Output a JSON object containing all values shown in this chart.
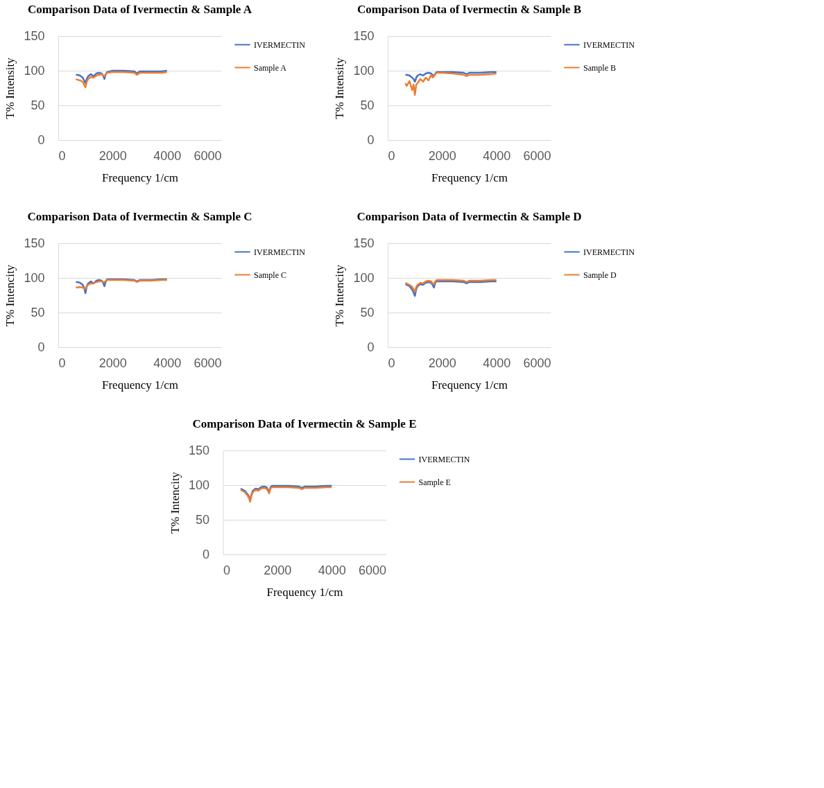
{
  "chart_data": [
    {
      "type": "line",
      "title": "Comparison Data of Ivermectin & Sample A",
      "xlabel": "Frequency 1/cm",
      "ylabel": "T% Intensity",
      "xlim": [
        0,
        6000
      ],
      "xticks": [
        0,
        2000,
        4000,
        6000
      ],
      "ylim": [
        0,
        150
      ],
      "yticks": [
        0,
        50,
        100,
        150
      ],
      "grid": "y",
      "legend": "right",
      "line_style": "solid",
      "x": [
        650,
        700,
        800,
        900,
        950,
        1000,
        1050,
        1100,
        1200,
        1300,
        1400,
        1500,
        1600,
        1650,
        1700,
        1750,
        1800,
        2000,
        2400,
        2800,
        2900,
        3000,
        3400,
        3800,
        4000
      ],
      "series": [
        {
          "name": "IVERMECTIN",
          "color": "#4472c4",
          "values": [
            94,
            94,
            93,
            90,
            86,
            82,
            88,
            92,
            95,
            92,
            96,
            97,
            96,
            93,
            88,
            95,
            98,
            100,
            100,
            99,
            96,
            99,
            99,
            99,
            100
          ]
        },
        {
          "name": "Sample A",
          "color": "#ed7d31",
          "values": [
            88,
            87,
            86,
            84,
            80,
            76,
            84,
            88,
            91,
            90,
            93,
            94,
            95,
            93,
            92,
            95,
            97,
            98,
            98,
            97,
            94,
            97,
            97,
            97,
            98
          ]
        }
      ]
    },
    {
      "type": "line",
      "title": "Comparison Data of Ivermectin & Sample B",
      "xlabel": "Frequency 1/cm",
      "ylabel": "T% Intensity",
      "xlim": [
        0,
        6000
      ],
      "xticks": [
        0,
        2000,
        4000,
        6000
      ],
      "ylim": [
        0,
        150
      ],
      "yticks": [
        0,
        50,
        100,
        150
      ],
      "grid": "y",
      "legend": "right",
      "line_style": "solid",
      "x": [
        650,
        700,
        800,
        900,
        950,
        1000,
        1050,
        1100,
        1200,
        1300,
        1400,
        1500,
        1600,
        1650,
        1700,
        1750,
        1800,
        2000,
        2400,
        2800,
        2900,
        3000,
        3400,
        3800,
        4000
      ],
      "series": [
        {
          "name": "IVERMECTIN",
          "color": "#4472c4",
          "values": [
            94,
            94,
            93,
            90,
            88,
            84,
            90,
            93,
            95,
            93,
            96,
            97,
            96,
            94,
            92,
            96,
            98,
            98,
            98,
            97,
            95,
            97,
            97,
            98,
            98
          ]
        },
        {
          "name": "Sample B",
          "color": "#ed7d31",
          "values": [
            82,
            78,
            85,
            72,
            80,
            65,
            80,
            82,
            88,
            84,
            90,
            86,
            94,
            90,
            92,
            95,
            97,
            97,
            96,
            94,
            92,
            94,
            94,
            95,
            96
          ]
        }
      ]
    },
    {
      "type": "line",
      "title": "Comparison Data of Ivermectin & Sample C",
      "xlabel": "Frequency 1/cm",
      "ylabel": "T% Intencity",
      "xlim": [
        0,
        6000
      ],
      "xticks": [
        0,
        2000,
        4000,
        6000
      ],
      "ylim": [
        0,
        150
      ],
      "yticks": [
        0,
        50,
        100,
        150
      ],
      "grid": "y",
      "legend": "right",
      "line_style": "solid",
      "x": [
        650,
        700,
        800,
        900,
        950,
        1000,
        1050,
        1100,
        1200,
        1300,
        1400,
        1500,
        1600,
        1650,
        1700,
        1750,
        1800,
        2000,
        2400,
        2800,
        2900,
        3000,
        3400,
        3800,
        4000
      ],
      "series": [
        {
          "name": "IVERMECTIN",
          "color": "#4472c4",
          "values": [
            94,
            94,
            93,
            90,
            86,
            78,
            88,
            92,
            95,
            92,
            96,
            97,
            96,
            93,
            88,
            95,
            98,
            98,
            98,
            97,
            95,
            97,
            97,
            98,
            98
          ]
        },
        {
          "name": "Sample C",
          "color": "#ed7d31",
          "values": [
            87,
            86,
            87,
            86,
            85,
            84,
            88,
            90,
            92,
            92,
            94,
            95,
            95,
            94,
            94,
            96,
            97,
            97,
            97,
            96,
            94,
            96,
            96,
            97,
            97
          ]
        }
      ]
    },
    {
      "type": "line",
      "title": "Comparison Data of Ivermectin & Sample D",
      "xlabel": "Frequency 1/cm",
      "ylabel": "T% Intencity",
      "xlim": [
        0,
        6000
      ],
      "xticks": [
        0,
        2000,
        4000,
        6000
      ],
      "ylim": [
        0,
        150
      ],
      "yticks": [
        0,
        50,
        100,
        150
      ],
      "grid": "y",
      "legend": "right",
      "line_style": "solid",
      "x": [
        650,
        700,
        800,
        900,
        950,
        1000,
        1050,
        1100,
        1200,
        1300,
        1400,
        1500,
        1600,
        1650,
        1700,
        1750,
        1800,
        2000,
        2400,
        2800,
        2900,
        3000,
        3400,
        3800,
        4000
      ],
      "series": [
        {
          "name": "IVERMECTIN",
          "color": "#4472c4",
          "values": [
            91,
            90,
            88,
            83,
            79,
            74,
            84,
            88,
            91,
            90,
            93,
            94,
            93,
            90,
            86,
            93,
            95,
            95,
            95,
            94,
            92,
            94,
            94,
            95,
            95
          ]
        },
        {
          "name": "Sample D",
          "color": "#ed7d31",
          "values": [
            93,
            92,
            90,
            87,
            84,
            80,
            87,
            90,
            93,
            92,
            95,
            96,
            95,
            92,
            91,
            95,
            97,
            97,
            97,
            96,
            94,
            96,
            96,
            97,
            97
          ]
        }
      ]
    },
    {
      "type": "line",
      "title": "Comparison Data of Ivermectin & Sample E",
      "xlabel": "Frequency 1/cm",
      "ylabel": "T% Intencity",
      "xlim": [
        0,
        6000
      ],
      "xticks": [
        0,
        2000,
        4000,
        6000
      ],
      "ylim": [
        0,
        150
      ],
      "yticks": [
        0,
        50,
        100,
        150
      ],
      "grid": "y",
      "legend": "right",
      "line_style": "solid",
      "x": [
        650,
        700,
        800,
        900,
        950,
        1000,
        1050,
        1100,
        1200,
        1300,
        1400,
        1500,
        1600,
        1650,
        1700,
        1750,
        1800,
        2000,
        2400,
        2800,
        2900,
        3000,
        3400,
        3800,
        4000
      ],
      "series": [
        {
          "name": "IVERMECTIN",
          "color": "#4472c4",
          "values": [
            95,
            94,
            92,
            87,
            84,
            79,
            87,
            92,
            95,
            94,
            97,
            98,
            97,
            94,
            90,
            97,
            99,
            99,
            99,
            98,
            96,
            98,
            98,
            99,
            99
          ]
        },
        {
          "name": "Sample E",
          "color": "#ed7d31",
          "values": [
            93,
            92,
            90,
            85,
            82,
            76,
            85,
            90,
            93,
            92,
            95,
            96,
            95,
            92,
            88,
            95,
            97,
            97,
            97,
            96,
            94,
            96,
            96,
            97,
            97
          ]
        }
      ]
    }
  ]
}
